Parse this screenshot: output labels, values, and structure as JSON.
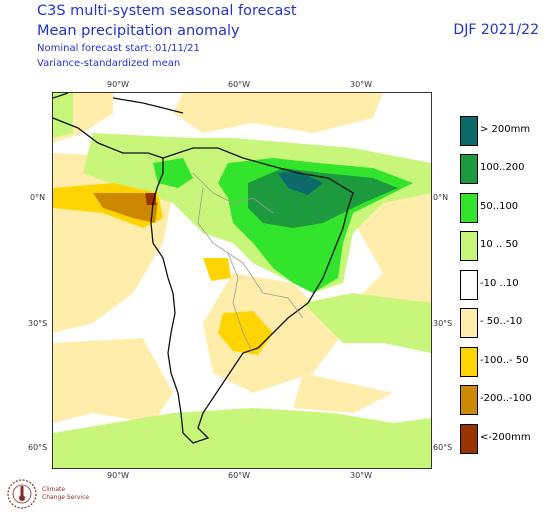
{
  "header": {
    "title_line1": "C3S multi-system seasonal forecast",
    "title_line2": "Mean precipitation anomaly",
    "subtitle_line1": "Nominal forecast start: 01/11/21",
    "subtitle_line2": "Variance-standardized mean",
    "period": "DJF 2021/22"
  },
  "map": {
    "top_lon_labels": [
      "90°W",
      "60°W",
      "30°W"
    ],
    "bottom_lon_labels": [
      "90°W",
      "60°W",
      "30°W"
    ],
    "left_lat_labels": [
      "0°N",
      "30°S",
      "60°S"
    ],
    "right_lat_labels": [
      "0°N",
      "30°S",
      "60°S"
    ]
  },
  "legend": {
    "items": [
      {
        "label": "> 200mm",
        "color": "#0c6a6a"
      },
      {
        "label": "100..200",
        "color": "#1d9a3e"
      },
      {
        "label": "50..100",
        "color": "#33e42c"
      },
      {
        "label": "10 .. 50",
        "color": "#c7f67a"
      },
      {
        "label": "-10 ..10",
        "color": "#ffffff"
      },
      {
        "label": "- 50..-10",
        "color": "#ffeeab"
      },
      {
        "label": "-100..- 50",
        "color": "#ffd400"
      },
      {
        "label": "-200..-100",
        "color": "#cc8800"
      },
      {
        "label": "<-200mm",
        "color": "#993300"
      }
    ]
  },
  "logo": {
    "line1": "Climate",
    "line2": "Change Service"
  }
}
